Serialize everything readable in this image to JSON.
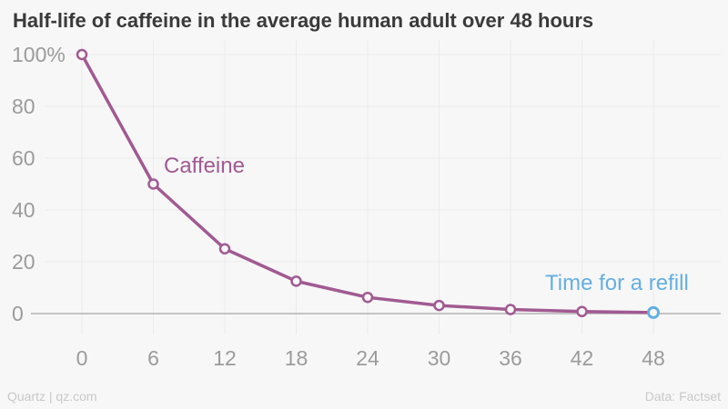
{
  "chart_data": {
    "type": "line",
    "title": "Half-life of caffeine in the average human adult over 48 hours",
    "xlabel": "",
    "ylabel": "",
    "xlim": [
      0,
      48
    ],
    "ylim": [
      0,
      100
    ],
    "grid": true,
    "x": [
      0,
      6,
      12,
      18,
      24,
      30,
      36,
      42,
      48
    ],
    "x_tick_labels": [
      "0",
      "6",
      "12",
      "18",
      "24",
      "30",
      "36",
      "42",
      "48"
    ],
    "y_tick_values": [
      100,
      80,
      60,
      40,
      20,
      0
    ],
    "y_tick_labels": [
      "100%",
      "80",
      "60",
      "40",
      "20",
      "0"
    ],
    "series": [
      {
        "name": "Caffeine",
        "color": "#a15a92",
        "values": [
          100,
          50,
          25,
          12.5,
          6.25,
          3.125,
          1.5625,
          0.78125,
          0.390625
        ]
      }
    ],
    "final_point_color": "#64afe1",
    "annotations": [
      {
        "text": "Caffeine",
        "color": "#a15a92"
      },
      {
        "text": "Time for a refill",
        "color": "#64afe1"
      }
    ],
    "legend_position": "inline-annotations"
  },
  "footer": {
    "source_left": "Quartz | qz.com",
    "source_right": "Data: Factset"
  },
  "colors": {
    "background": "#f7f7f7",
    "title": "#3a3a3a",
    "axis_label": "#9b9b9b",
    "gridline": "#ebebeb",
    "axis_line": "#b3b3b3",
    "marker_fill": "#f7f7f7"
  }
}
